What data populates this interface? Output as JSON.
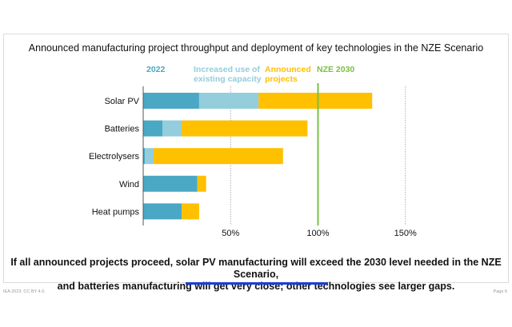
{
  "page": {
    "footer_left": "IEA 2023. CC BY 4.0.",
    "footer_right": "Page 6"
  },
  "caption": {
    "line1": "If all announced projects proceed, solar PV manufacturing will exceed the 2030 level needed in the NZE Scenario,",
    "line2": "and batteries manufacturing will get very close; other technologies see larger gaps."
  },
  "colors": {
    "y2022": "#4aa8c4",
    "existing_capacity": "#94cddc",
    "announced": "#ffc000",
    "nze": "#7ac143",
    "underline": "#1a3fd6"
  },
  "chart_data": {
    "type": "bar",
    "orientation": "horizontal",
    "stacked": true,
    "title": "Announced manufacturing project throughput and deployment of key technologies in the NZE Scenario",
    "xlabel": "",
    "ylabel": "",
    "xlim": [
      0,
      155
    ],
    "x_unit": "%",
    "grid": true,
    "xticks": [
      50,
      100,
      150
    ],
    "xtick_labels": [
      "50%",
      "100%",
      "150%"
    ],
    "categories": [
      "Solar PV",
      "Batteries",
      "Electrolysers",
      "Wind",
      "Heat pumps"
    ],
    "series": [
      {
        "name": "2022",
        "legend": "2022",
        "values": [
          32,
          11,
          1,
          31,
          22
        ]
      },
      {
        "name": "Increased use of existing capacity",
        "legend": "Increased use of existing capacity",
        "values": [
          34,
          11,
          5,
          0,
          0
        ]
      },
      {
        "name": "Announced projects",
        "legend": "Announced projects",
        "values": [
          65,
          72,
          74,
          5,
          10
        ]
      }
    ],
    "reference_line": {
      "name": "NZE 2030",
      "value": 100
    },
    "legend": {
      "placement": "top",
      "items": [
        {
          "line1": "2022",
          "line2": ""
        },
        {
          "line1": "Increased use of",
          "line2": "existing capacity"
        },
        {
          "line1": "Announced",
          "line2": "projects"
        },
        {
          "line1": "NZE 2030",
          "line2": ""
        }
      ]
    }
  }
}
